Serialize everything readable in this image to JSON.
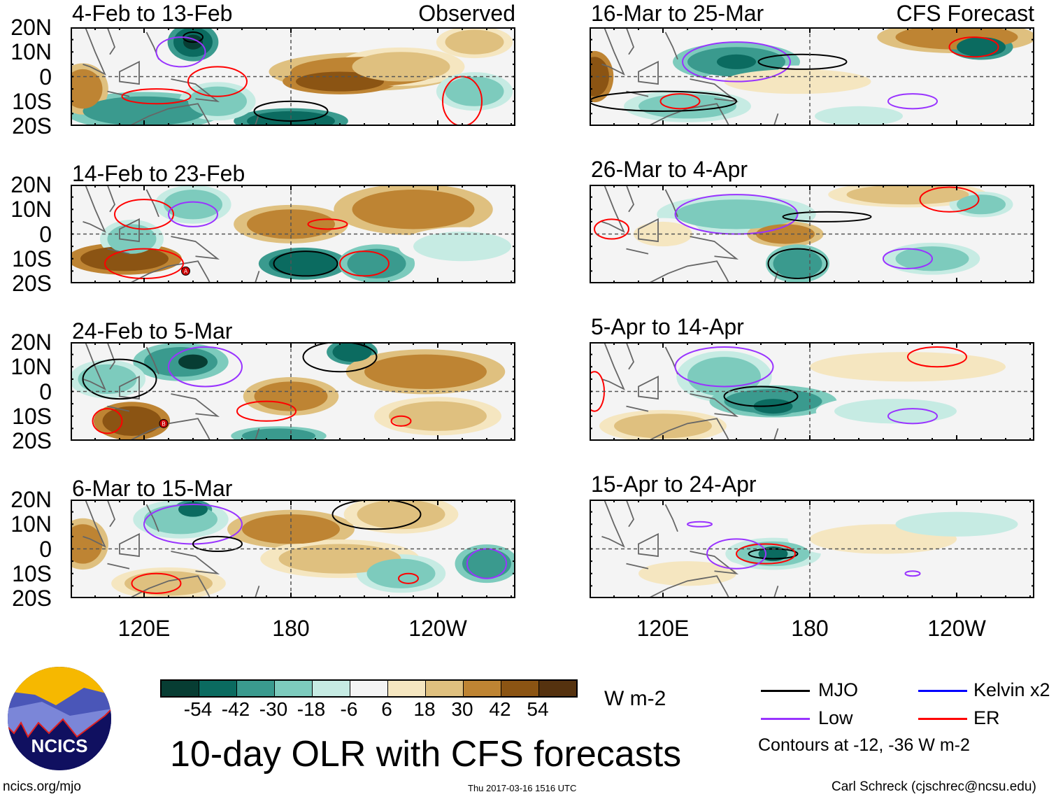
{
  "figure": {
    "title": "10-day OLR with CFS forecasts",
    "observed_label": "Observed",
    "forecast_label": "CFS Forecast",
    "units": "W m-2",
    "footer_left": "ncics.org/mjo",
    "footer_center": "Thu 2017-03-16 1516 UTC",
    "footer_right": "Carl Schreck (cjschrec@ncsu.edu)",
    "logo_text": "NCICS"
  },
  "axes": {
    "lat_labels": [
      "20N",
      "10N",
      "0",
      "10S",
      "20S"
    ],
    "lon_labels": [
      "120E",
      "180",
      "120W"
    ]
  },
  "panels_observed": [
    {
      "title": "4-Feb to 13-Feb"
    },
    {
      "title": "14-Feb to 23-Feb"
    },
    {
      "title": "24-Feb to 5-Mar"
    },
    {
      "title": "6-Mar to 15-Mar"
    }
  ],
  "panels_forecast": [
    {
      "title": "16-Mar to 25-Mar"
    },
    {
      "title": "26-Mar to 4-Apr"
    },
    {
      "title": "5-Apr to 14-Apr"
    },
    {
      "title": "15-Apr to 24-Apr"
    }
  ],
  "colorbar": {
    "ticks": [
      "-54",
      "-42",
      "-30",
      "-18",
      "-6",
      "6",
      "18",
      "30",
      "42",
      "54"
    ],
    "colors": [
      "#073d33",
      "#0b6b60",
      "#3a9a8e",
      "#7dcbbd",
      "#c6ebe3",
      "#f4f4f4",
      "#f5e6c0",
      "#dfc07f",
      "#be8433",
      "#8b5413",
      "#55320f"
    ]
  },
  "legend": {
    "items": [
      {
        "label": "MJO",
        "color": "#000000"
      },
      {
        "label": "Kelvin x2",
        "color": "#0000ff"
      },
      {
        "label": "Low",
        "color": "#9933ff"
      },
      {
        "label": "ER",
        "color": "#ff0000"
      }
    ],
    "contours_note": "Contours at -12, -36 W m-2"
  },
  "markers": [
    "A",
    "B"
  ]
}
